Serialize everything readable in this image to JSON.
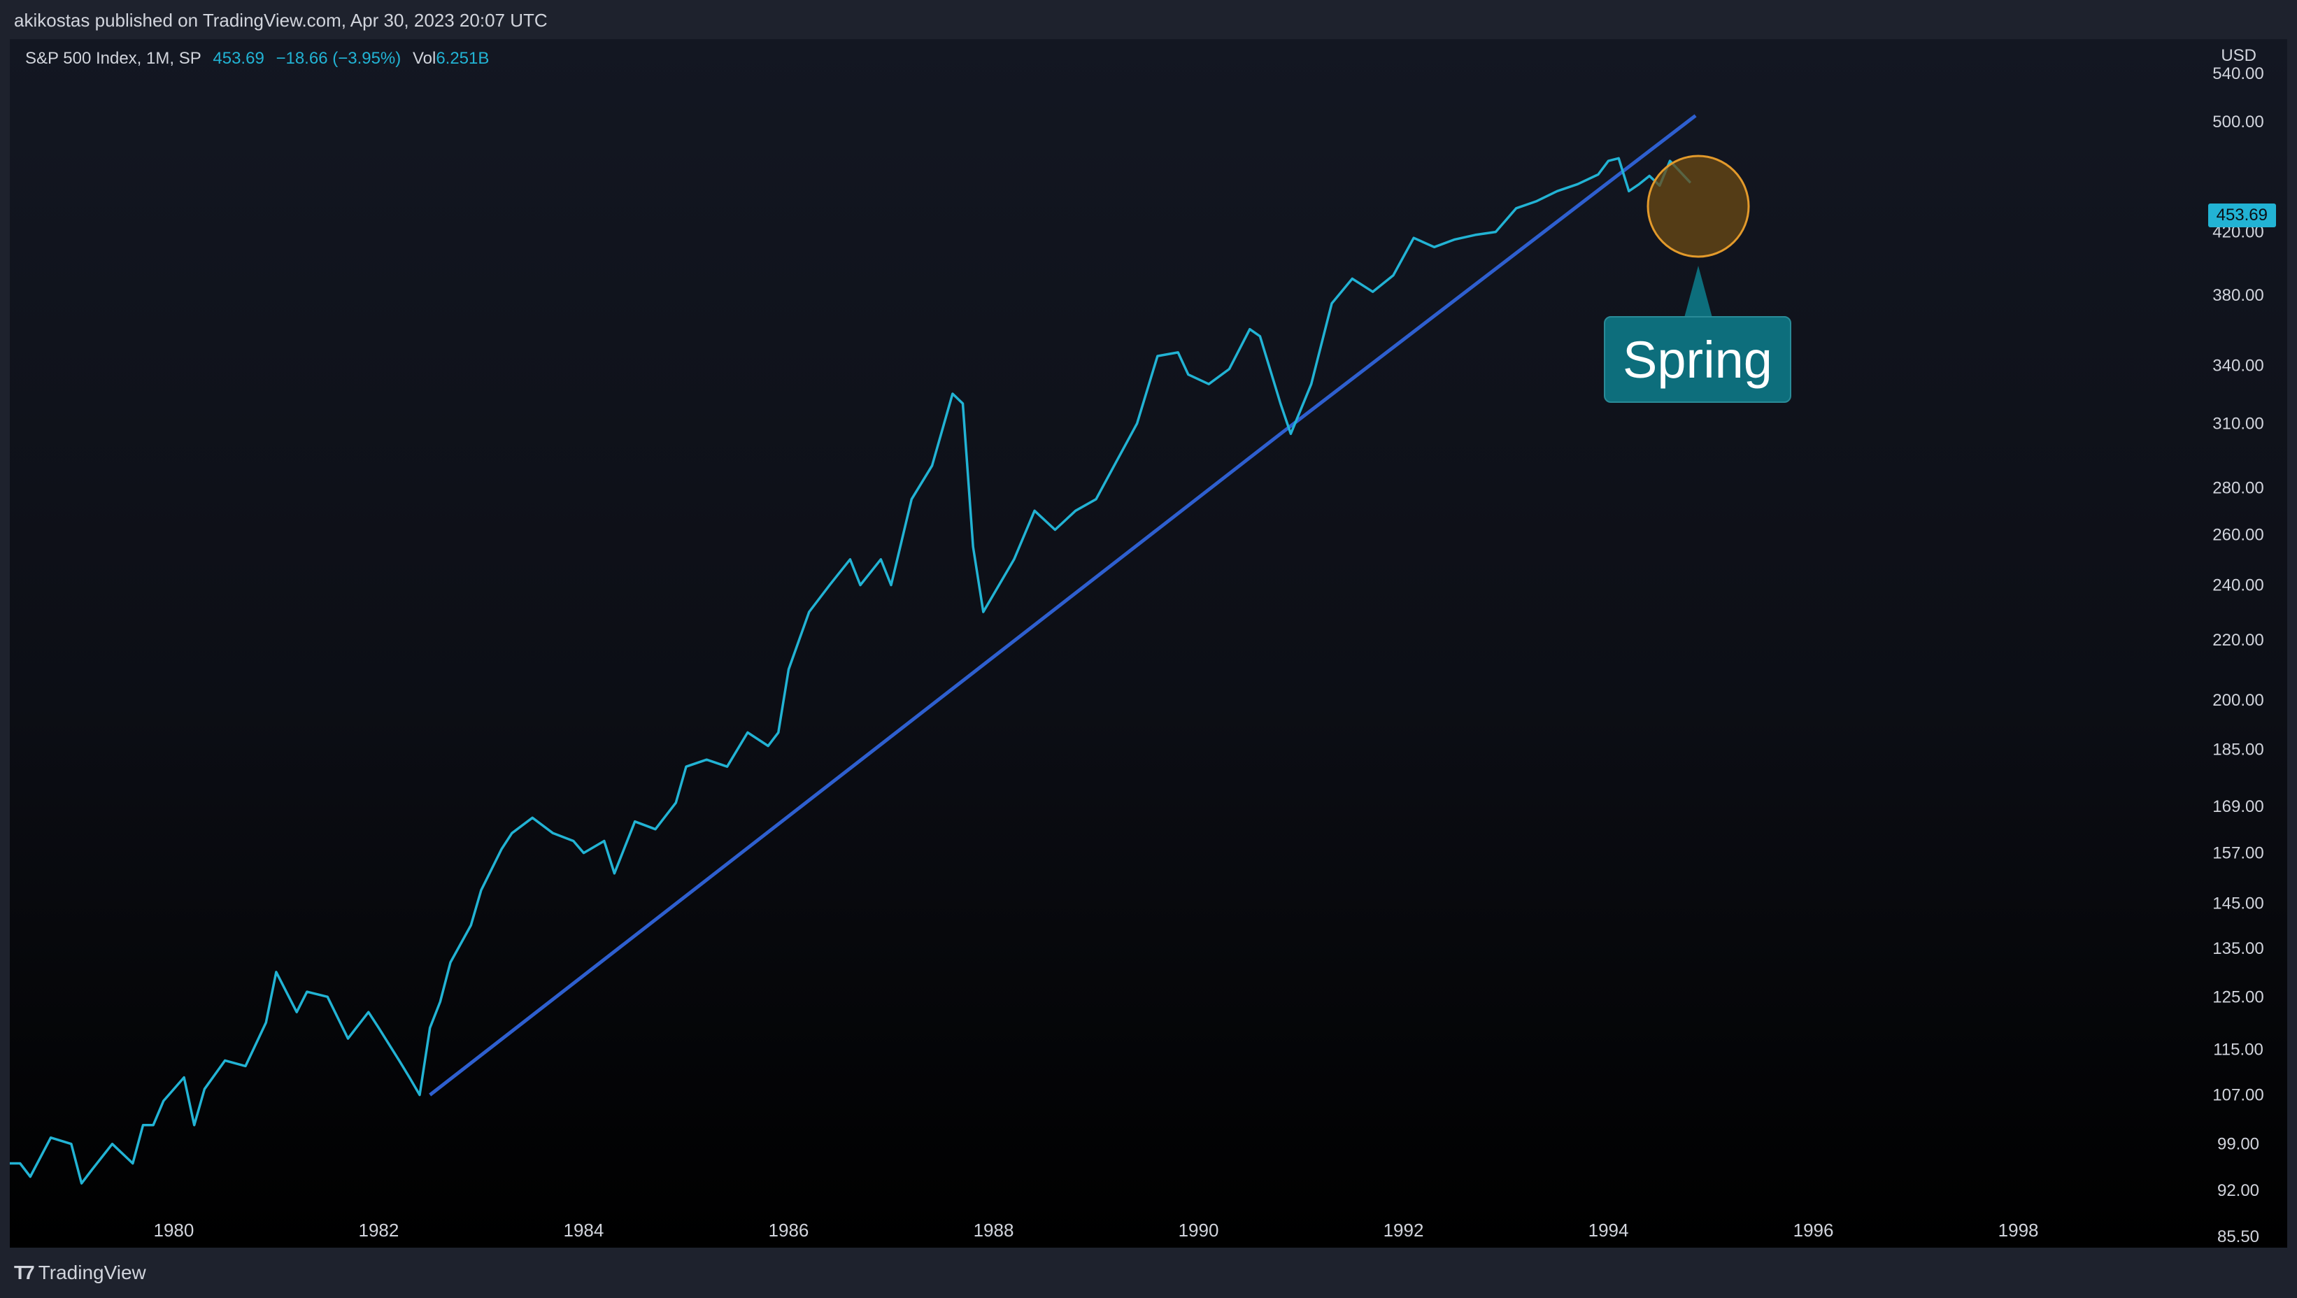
{
  "header": {
    "publish_line": "akikostas published on TradingView.com, Apr 30, 2023 20:07 UTC"
  },
  "legend": {
    "symbol": "S&P 500 Index, 1M, SP",
    "value": "453.69",
    "change": "−18.66 (−3.95%)",
    "vol_label": "Vol",
    "vol_value": "6.251B"
  },
  "axis": {
    "currency": "USD",
    "current_price_label": "453.69"
  },
  "footer": {
    "brand": "TradingView",
    "brand_icon": "tradingview-logo-icon"
  },
  "annotation": {
    "label": "Spring"
  },
  "colors": {
    "price_line": "#22b3d4",
    "trend_line": "#2e5fcf",
    "highlight_fill": "#6b4a14",
    "highlight_stroke": "#e39a2b",
    "callout_bg": "#0d6e7c"
  },
  "chart_data": {
    "type": "line",
    "title": "",
    "xlabel": "",
    "ylabel": "",
    "scale": "log",
    "xlim": [
      1978.4,
      1999.6
    ],
    "ylim": [
      84,
      570
    ],
    "x_ticks": [
      1980,
      1982,
      1984,
      1986,
      1988,
      1990,
      1992,
      1994,
      1996,
      1998
    ],
    "y_ticks": [
      "540.00",
      "500.00",
      "420.00",
      "380.00",
      "340.00",
      "310.00",
      "280.00",
      "260.00",
      "240.00",
      "220.00",
      "200.00",
      "185.00",
      "169.00",
      "157.00",
      "145.00",
      "135.00",
      "125.00",
      "115.00",
      "107.00",
      "99.00",
      "92.00",
      "85.50"
    ],
    "grid": false,
    "legend_position": "top-left",
    "series": [
      {
        "x": [
          1978.4,
          1978.5,
          1978.6,
          1978.8,
          1979.0,
          1979.1,
          1979.2,
          1979.4,
          1979.6,
          1979.7,
          1979.8,
          1979.9,
          1980.1,
          1980.2,
          1980.3,
          1980.5,
          1980.7,
          1980.9,
          1981.0,
          1981.2,
          1981.3,
          1981.5,
          1981.7,
          1981.9,
          1982.0,
          1982.2,
          1982.3,
          1982.4,
          1982.5,
          1982.6,
          1982.7,
          1982.9,
          1983.0,
          1983.2,
          1983.3,
          1983.5,
          1983.7,
          1983.9,
          1984.0,
          1984.2,
          1984.3,
          1984.5,
          1984.7,
          1984.9,
          1985.0,
          1985.2,
          1985.4,
          1985.6,
          1985.8,
          1985.9,
          1986.0,
          1986.2,
          1986.4,
          1986.6,
          1986.7,
          1986.9,
          1987.0,
          1987.2,
          1987.4,
          1987.6,
          1987.7,
          1987.8,
          1987.9,
          1988.2,
          1988.4,
          1988.6,
          1988.8,
          1989.0,
          1989.2,
          1989.4,
          1989.6,
          1989.8,
          1989.9,
          1990.1,
          1990.3,
          1990.5,
          1990.6,
          1990.8,
          1990.9,
          1991.1,
          1991.3,
          1991.5,
          1991.7,
          1991.9,
          1992.1,
          1992.3,
          1992.5,
          1992.7,
          1992.9,
          1993.1,
          1993.3,
          1993.5,
          1993.7,
          1993.9,
          1994.0,
          1994.1,
          1994.2,
          1994.3,
          1994.4,
          1994.5,
          1994.6,
          1994.7,
          1994.8
        ],
        "y": [
          96,
          96,
          94,
          100,
          99,
          93,
          95,
          99,
          96,
          102,
          102,
          106,
          110,
          102,
          108,
          113,
          112,
          120,
          130,
          122,
          126,
          125,
          117,
          122,
          119,
          113,
          110,
          107,
          119,
          124,
          132,
          140,
          148,
          158,
          162,
          166,
          162,
          160,
          157,
          160,
          152,
          165,
          163,
          170,
          180,
          182,
          180,
          190,
          186,
          190,
          210,
          230,
          240,
          250,
          240,
          250,
          240,
          275,
          290,
          325,
          320,
          255,
          230,
          250,
          270,
          262,
          270,
          275,
          292,
          310,
          345,
          347,
          335,
          330,
          338,
          360,
          356,
          320,
          305,
          330,
          375,
          390,
          382,
          392,
          416,
          410,
          415,
          418,
          420,
          436,
          441,
          448,
          453,
          460,
          470,
          472,
          448,
          453,
          459,
          452,
          470,
          462,
          454
        ]
      }
    ],
    "trendline": {
      "x": [
        1982.5,
        1990.8,
        1994.85
      ],
      "y": [
        107,
        305,
        505
      ]
    }
  }
}
